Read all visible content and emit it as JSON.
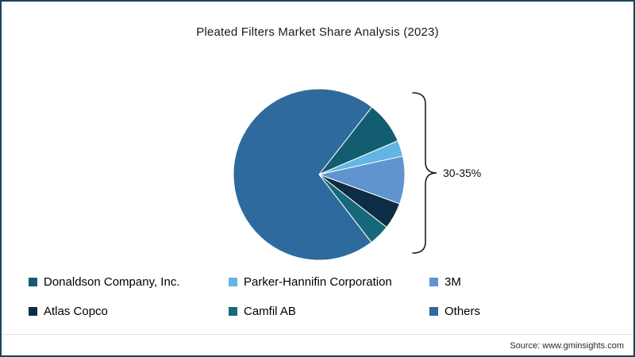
{
  "title": "Pleated Filters Market Share Analysis (2023)",
  "source": "Source: www.gminsights.com",
  "frame": {
    "border_color": "#16455a",
    "background": "#ffffff"
  },
  "chart_data": {
    "type": "pie",
    "title": "Pleated Filters Market Share Analysis (2023)",
    "legend_position": "bottom",
    "start_angle_deg": 38,
    "annotation": {
      "text": "30-35%",
      "refers_to": "combined share of the named companies (all slices except Others)"
    },
    "series": [
      {
        "name": "Donaldson Company, Inc.",
        "value": 8,
        "color": "#135d70"
      },
      {
        "name": "Parker-Hannifin Corporation",
        "value": 3,
        "color": "#62b5e5"
      },
      {
        "name": "3M",
        "value": 9,
        "color": "#6094ce"
      },
      {
        "name": "Atlas Copco",
        "value": 5,
        "color": "#0d2d44"
      },
      {
        "name": "Camfil AB",
        "value": 4,
        "color": "#17697a"
      },
      {
        "name": "Others",
        "value": 71,
        "color": "#2e6a9e"
      }
    ]
  }
}
